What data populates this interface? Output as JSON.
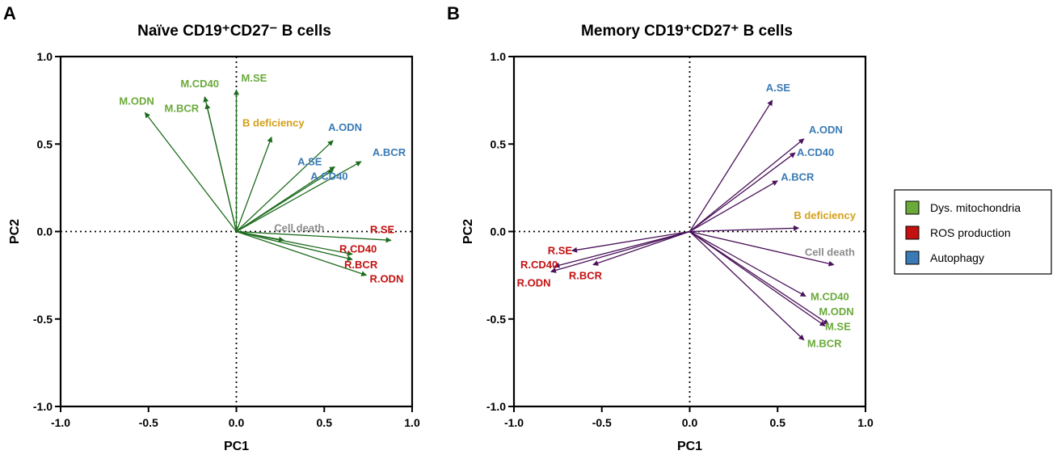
{
  "chart_data": [
    {
      "type": "biplot",
      "panel": "A",
      "title": "Naïve CD19⁺CD27⁻ B cells",
      "xlabel": "PC1",
      "ylabel": "PC2",
      "xlim": [
        -1.0,
        1.0
      ],
      "ylim": [
        -1.0,
        1.0
      ],
      "xticks": [
        "-1.0",
        "-0.5",
        "0.0",
        "0.5",
        "1.0"
      ],
      "yticks": [
        "-1.0",
        "-0.5",
        "0.0",
        "0.5",
        "1.0"
      ],
      "arrow_color": "#1d6b1d",
      "vectors": [
        {
          "label": "M.SE",
          "x": 0.0,
          "y": 0.81,
          "category": "mito"
        },
        {
          "label": "M.CD40",
          "x": -0.18,
          "y": 0.77,
          "category": "mito"
        },
        {
          "label": "M.BCR",
          "x": -0.17,
          "y": 0.73,
          "category": "mito"
        },
        {
          "label": "M.ODN",
          "x": -0.52,
          "y": 0.68,
          "category": "mito"
        },
        {
          "label": "B deficiency",
          "x": 0.2,
          "y": 0.54,
          "category": "bdef"
        },
        {
          "label": "A.ODN",
          "x": 0.55,
          "y": 0.52,
          "category": "auto"
        },
        {
          "label": "A.BCR",
          "x": 0.71,
          "y": 0.4,
          "category": "auto"
        },
        {
          "label": "A.SE",
          "x": 0.55,
          "y": 0.35,
          "category": "auto"
        },
        {
          "label": "A.CD40",
          "x": 0.56,
          "y": 0.37,
          "category": "auto"
        },
        {
          "label": "Cell death",
          "x": 0.27,
          "y": -0.05,
          "category": "death"
        },
        {
          "label": "R.SE",
          "x": 0.88,
          "y": -0.05,
          "category": "ros"
        },
        {
          "label": "R.CD40",
          "x": 0.66,
          "y": -0.13,
          "category": "ros"
        },
        {
          "label": "R.BCR",
          "x": 0.66,
          "y": -0.16,
          "category": "ros"
        },
        {
          "label": "R.ODN",
          "x": 0.74,
          "y": -0.25,
          "category": "ros"
        }
      ]
    },
    {
      "type": "biplot",
      "panel": "B",
      "title": "Memory CD19⁺CD27⁺ B cells",
      "xlabel": "PC1",
      "ylabel": "PC2",
      "xlim": [
        -1.0,
        1.0
      ],
      "ylim": [
        -1.0,
        1.0
      ],
      "xticks": [
        "-1.0",
        "-0.5",
        "0.0",
        "0.5",
        "1.0"
      ],
      "yticks": [
        "-1.0",
        "-0.5",
        "0.0",
        "0.5",
        "1.0"
      ],
      "arrow_color": "#4a1259",
      "vectors": [
        {
          "label": "A.SE",
          "x": 0.47,
          "y": 0.75,
          "category": "auto"
        },
        {
          "label": "A.ODN",
          "x": 0.65,
          "y": 0.53,
          "category": "auto"
        },
        {
          "label": "A.CD40",
          "x": 0.6,
          "y": 0.45,
          "category": "auto"
        },
        {
          "label": "A.BCR",
          "x": 0.5,
          "y": 0.29,
          "category": "auto"
        },
        {
          "label": "B deficiency",
          "x": 0.62,
          "y": 0.02,
          "category": "bdef"
        },
        {
          "label": "Cell death",
          "x": 0.82,
          "y": -0.19,
          "category": "death"
        },
        {
          "label": "M.CD40",
          "x": 0.66,
          "y": -0.37,
          "category": "mito"
        },
        {
          "label": "M.ODN",
          "x": 0.79,
          "y": -0.53,
          "category": "mito"
        },
        {
          "label": "M.SE",
          "x": 0.77,
          "y": -0.54,
          "category": "mito"
        },
        {
          "label": "M.BCR",
          "x": 0.65,
          "y": -0.62,
          "category": "mito"
        },
        {
          "label": "R.SE",
          "x": -0.67,
          "y": -0.11,
          "category": "ros"
        },
        {
          "label": "R.CD40",
          "x": -0.77,
          "y": -0.2,
          "category": "ros"
        },
        {
          "label": "R.ODN",
          "x": -0.79,
          "y": -0.23,
          "category": "ros"
        },
        {
          "label": "R.BCR",
          "x": -0.55,
          "y": -0.19,
          "category": "ros"
        }
      ]
    }
  ],
  "category_colors": {
    "mito": "#6aaa3a",
    "ros": "#c41010",
    "auto": "#3a7ab5",
    "bdef": "#d4a017",
    "death": "#8c8c8c"
  },
  "legend": [
    {
      "label": "Dys. mitochondria",
      "color": "#6aaa3a"
    },
    {
      "label": "ROS production",
      "color": "#c41010"
    },
    {
      "label": "Autophagy",
      "color": "#3a7ab5"
    }
  ]
}
